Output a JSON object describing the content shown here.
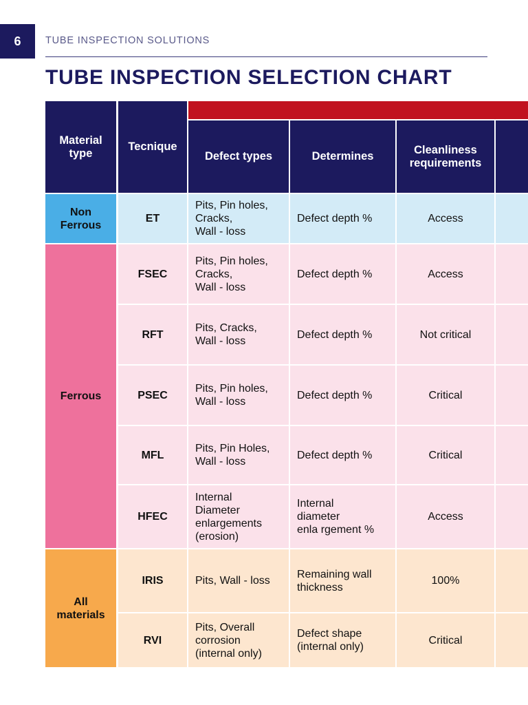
{
  "header": {
    "page_number": "6",
    "running_title": "TUBE INSPECTION SOLUTIONS",
    "title": "TUBE INSPECTION SELECTION CHART"
  },
  "colors": {
    "navy": "#1c1a5e",
    "red_band": "#c1121f",
    "non_ferrous_dark": "#4aaee6",
    "non_ferrous_light": "#d3ebf7",
    "ferrous_dark": "#ee719c",
    "ferrous_light": "#fbe1ea",
    "all_materials_dark": "#f7a94c",
    "all_materials_light": "#fde6cf"
  },
  "table": {
    "headers": {
      "material_type": "Material\ntype",
      "technique": "Tecnique",
      "defect_types": "Defect types",
      "determines": "Determines",
      "cleanliness": "Cleanliness\nrequirements"
    },
    "groups": {
      "non_ferrous": "Non\nFerrous",
      "ferrous": "Ferrous",
      "all_materials": "All\nmaterials"
    },
    "rows": [
      {
        "technique": "ET",
        "defects": "Pits, Pin holes,\nCracks,\nWall - loss",
        "determines": "Defect depth %",
        "cleanliness": "Access"
      },
      {
        "technique": "FSEC",
        "defects": "Pits, Pin holes,\nCracks,\nWall - loss",
        "determines": "Defect depth %",
        "cleanliness": "Access"
      },
      {
        "technique": "RFT",
        "defects": "Pits, Cracks,\nWall - loss",
        "determines": "Defect depth %",
        "cleanliness": "Not critical"
      },
      {
        "technique": "PSEC",
        "defects": "Pits, Pin holes,\nWall - loss",
        "determines": "Defect depth %",
        "cleanliness": "Critical"
      },
      {
        "technique": "MFL",
        "defects": "Pits, Pin Holes,\nWall - loss",
        "determines": "Defect depth %",
        "cleanliness": "Critical"
      },
      {
        "technique": "HFEC",
        "defects": "Internal\nDiameter\nenlargements\n(erosion)",
        "determines": "Internal\ndiameter\nenla rgement %",
        "cleanliness": "Access"
      },
      {
        "technique": "IRIS",
        "defects": "Pits, Wall - loss",
        "determines": "Remaining wall\nthickness",
        "cleanliness": "100%"
      },
      {
        "technique": "RVI",
        "defects": "Pits, Overall\ncorrosion\n(internal only)",
        "determines": "Defect shape\n(internal only)",
        "cleanliness": "Critical"
      }
    ]
  }
}
